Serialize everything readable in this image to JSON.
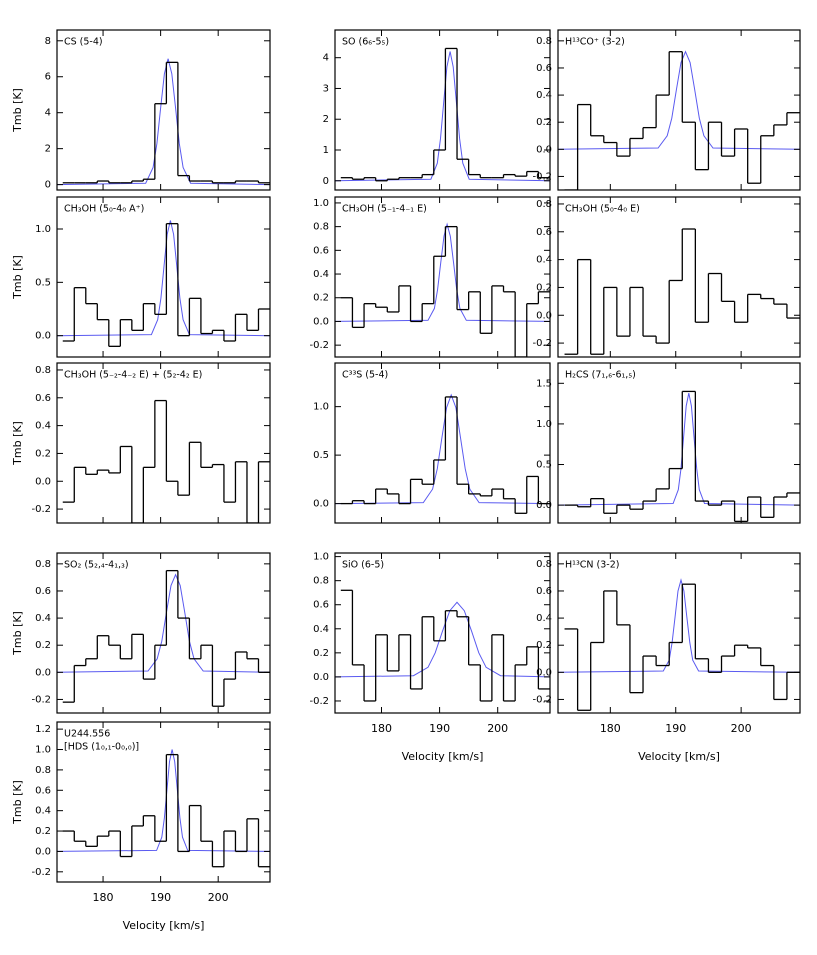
{
  "chart_data": [
    {
      "type": "step",
      "title": "CS (5-4)",
      "ylabel": "Tmb [K]",
      "xlim": [
        172,
        209
      ],
      "xticks": [
        180,
        190,
        200
      ],
      "ylim": [
        -0.3,
        8.6
      ],
      "yticks": [
        0,
        2,
        4,
        6,
        8
      ],
      "x": [
        174,
        176,
        178,
        180,
        182,
        184,
        186,
        188,
        190,
        192,
        194,
        196,
        198,
        200,
        202,
        204,
        206,
        208
      ],
      "values": [
        0.1,
        0.1,
        0.1,
        0.2,
        0.1,
        0.1,
        0.2,
        0.3,
        4.5,
        6.8,
        0.5,
        0.2,
        0.2,
        0.1,
        0.1,
        0.2,
        0.2,
        0.1
      ],
      "color": "#000000",
      "fit_x": [
        172,
        187.4,
        188.7,
        189.35,
        190.0,
        190.65,
        191.3,
        191.95,
        192.6,
        193.25,
        193.9,
        195.2,
        209
      ],
      "fit": [
        0,
        0.08,
        0.95,
        2.28,
        4.25,
        6.17,
        7,
        6.17,
        4.25,
        2.28,
        0.95,
        0.08,
        0
      ],
      "fit_color": "#5a5af0"
    },
    {
      "type": "step",
      "title": "SO (6₆-5₅)",
      "xlim": [
        172,
        209
      ],
      "xticks": [
        180,
        190,
        200
      ],
      "ylim": [
        -0.3,
        4.9
      ],
      "yticks": [
        0,
        1,
        2,
        3,
        4
      ],
      "x": [
        174,
        176,
        178,
        180,
        182,
        184,
        186,
        188,
        190,
        192,
        194,
        196,
        198,
        200,
        202,
        204,
        206,
        208
      ],
      "values": [
        0.1,
        0.05,
        0.1,
        0,
        0.05,
        0.1,
        0.1,
        0.2,
        1.0,
        4.3,
        0.7,
        0.2,
        0.1,
        0.1,
        0.2,
        0.15,
        0.3,
        0.1
      ],
      "color": "#000000",
      "fit_x": [
        172,
        188.5,
        189.6,
        190.15,
        190.7,
        191.25,
        191.8,
        192.35,
        192.9,
        193.45,
        194,
        195.1,
        209
      ],
      "fit": [
        0,
        0.05,
        0.57,
        1.37,
        2.55,
        3.7,
        4.2,
        3.7,
        2.55,
        1.37,
        0.57,
        0.05,
        0
      ],
      "fit_color": "#5a5af0"
    },
    {
      "type": "step",
      "title": "H¹³CO⁺ (3-2)",
      "xlim": [
        172,
        209
      ],
      "xticks": [
        180,
        190,
        200
      ],
      "ylim": [
        -0.3,
        0.88
      ],
      "yticks": [
        -0.2,
        {
          "value": 0,
          "label": "0.0"
        },
        0.2,
        0.4,
        0.6,
        0.8
      ],
      "x": [
        174,
        176,
        178,
        180,
        182,
        184,
        186,
        188,
        190,
        192,
        194,
        196,
        198,
        200,
        202,
        204,
        206,
        208
      ],
      "values": [
        -0.3,
        0.33,
        0.1,
        0.05,
        -0.05,
        0.08,
        0.16,
        0.4,
        0.72,
        0.2,
        -0.15,
        0.2,
        -0.05,
        0.15,
        -0.25,
        0.1,
        0.18,
        0.27
      ],
      "color": "#000000",
      "fit_x": [
        172,
        187.3,
        188.7,
        189.4,
        190.1,
        190.8,
        191.5,
        192.2,
        192.9,
        193.6,
        194.3,
        195.7,
        209
      ],
      "fit": [
        0,
        0.01,
        0.1,
        0.23,
        0.44,
        0.64,
        0.72,
        0.64,
        0.44,
        0.23,
        0.1,
        0.01,
        0
      ],
      "fit_color": "#5a5af0"
    },
    {
      "type": "step",
      "title": "CH₃OH (5₀-4₀ A⁺)",
      "ylabel": "Tmb [K]",
      "xlim": [
        172,
        209
      ],
      "xticks": [
        180,
        190,
        200
      ],
      "ylim": [
        -0.2,
        1.3
      ],
      "yticks": [
        {
          "value": 0,
          "label": "0.0"
        },
        0.5,
        {
          "value": 1,
          "label": "1.0"
        }
      ],
      "x": [
        174,
        176,
        178,
        180,
        182,
        184,
        186,
        188,
        190,
        192,
        194,
        196,
        198,
        200,
        202,
        204,
        206,
        208
      ],
      "values": [
        -0.05,
        0.45,
        0.3,
        0.15,
        -0.1,
        0.15,
        0.05,
        0.3,
        0.2,
        1.05,
        0,
        0.35,
        0.02,
        0.05,
        -0.05,
        0.2,
        0.05,
        0.25
      ],
      "color": "#000000",
      "fit_x": [
        172,
        188.4,
        189.5,
        190.05,
        190.6,
        191.15,
        191.7,
        192.25,
        192.8,
        193.35,
        193.9,
        195,
        209
      ],
      "fit": [
        0,
        0.01,
        0.15,
        0.35,
        0.66,
        0.95,
        1.08,
        0.95,
        0.66,
        0.35,
        0.15,
        0.01,
        0
      ],
      "fit_color": "#5a5af0"
    },
    {
      "type": "step",
      "title": "CH₃OH (5₋₁-4₋₁ E)",
      "xlim": [
        172,
        209
      ],
      "xticks": [
        180,
        190,
        200
      ],
      "ylim": [
        -0.3,
        1.05
      ],
      "yticks": [
        -0.2,
        {
          "value": 0,
          "label": "0.0"
        },
        0.2,
        0.4,
        0.6,
        0.8,
        {
          "value": 1,
          "label": "1.0"
        }
      ],
      "x": [
        174,
        176,
        178,
        180,
        182,
        184,
        186,
        188,
        190,
        192,
        194,
        196,
        198,
        200,
        202,
        204,
        206,
        208
      ],
      "values": [
        0.2,
        -0.05,
        0.15,
        0.12,
        0.08,
        0.3,
        0,
        0.15,
        0.55,
        0.8,
        0.1,
        0.25,
        -0.1,
        0.3,
        0.25,
        -0.3,
        0.15,
        0.25
      ],
      "color": "#000000",
      "fit_x": [
        172,
        188,
        189.1,
        189.65,
        190.2,
        190.75,
        191.3,
        191.85,
        192.4,
        192.95,
        193.5,
        194.6,
        209
      ],
      "fit": [
        0,
        0.01,
        0.11,
        0.27,
        0.5,
        0.72,
        0.82,
        0.72,
        0.5,
        0.27,
        0.11,
        0.01,
        0
      ],
      "fit_color": "#5a5af0"
    },
    {
      "type": "step",
      "title": "CH₃OH (5₀-4₀ E)",
      "xlim": [
        172,
        209
      ],
      "xticks": [
        180,
        190,
        200
      ],
      "ylim": [
        -0.3,
        0.85
      ],
      "yticks": [
        -0.2,
        {
          "value": 0,
          "label": "0.0"
        },
        0.2,
        0.4,
        0.6,
        0.8
      ],
      "x": [
        174,
        176,
        178,
        180,
        182,
        184,
        186,
        188,
        190,
        192,
        194,
        196,
        198,
        200,
        202,
        204,
        206,
        208
      ],
      "values": [
        -0.28,
        0.4,
        -0.28,
        0.2,
        -0.15,
        0.2,
        -0.15,
        -0.2,
        0.25,
        0.62,
        -0.05,
        0.3,
        0.1,
        -0.05,
        0.15,
        0.12,
        0.08,
        -0.02
      ],
      "color": "#000000"
    },
    {
      "type": "step",
      "title": "CH₃OH (5₋₂-4₋₂ E) + (5₂-4₂ E)",
      "ylabel": "Tmb [K]",
      "xlim": [
        172,
        209
      ],
      "xticks": [
        180,
        190,
        200
      ],
      "ylim": [
        -0.3,
        0.85
      ],
      "yticks": [
        -0.2,
        {
          "value": 0,
          "label": "0.0"
        },
        0.2,
        0.4,
        0.6,
        0.8
      ],
      "x": [
        174,
        176,
        178,
        180,
        182,
        184,
        186,
        188,
        190,
        192,
        194,
        196,
        198,
        200,
        202,
        204,
        206,
        208
      ],
      "values": [
        -0.15,
        0.1,
        0.05,
        0.08,
        0.06,
        0.25,
        -0.3,
        0.1,
        0.58,
        0,
        -0.1,
        0.28,
        0.1,
        0.12,
        -0.15,
        0.14,
        -0.3,
        0.14
      ],
      "color": "#000000"
    },
    {
      "type": "step",
      "title": "C³³S (5-4)",
      "xlim": [
        172,
        209
      ],
      "xticks": [
        180,
        190,
        200
      ],
      "ylim": [
        -0.2,
        1.45
      ],
      "yticks": [
        {
          "value": 0,
          "label": "0.0"
        },
        0.5,
        {
          "value": 1,
          "label": "1.0"
        }
      ],
      "x": [
        174,
        176,
        178,
        180,
        182,
        184,
        186,
        188,
        190,
        192,
        194,
        196,
        198,
        200,
        202,
        204,
        206,
        208
      ],
      "values": [
        0,
        0.03,
        0,
        0.15,
        0.1,
        0,
        0.25,
        0.2,
        0.45,
        1.1,
        0.2,
        0.1,
        0.08,
        0.15,
        0.05,
        -0.1,
        0.28,
        0
      ],
      "color": "#000000",
      "fit_x": [
        172,
        187.2,
        188.8,
        189.6,
        190.4,
        191.2,
        192,
        192.8,
        193.6,
        194.4,
        195.2,
        196.8,
        209
      ],
      "fit": [
        0,
        0.01,
        0.15,
        0.36,
        0.68,
        0.99,
        1.12,
        0.99,
        0.68,
        0.36,
        0.15,
        0.01,
        0
      ],
      "fit_color": "#5a5af0"
    },
    {
      "type": "step",
      "title": "H₂CS (7₁,₆-6₁,₅)",
      "xlim": [
        172,
        209
      ],
      "xticks": [
        180,
        190,
        200
      ],
      "ylim": [
        -0.22,
        1.75
      ],
      "yticks": [
        {
          "value": 0,
          "label": "0.0"
        },
        0.5,
        {
          "value": 1,
          "label": "1.0"
        },
        1.5
      ],
      "x": [
        174,
        176,
        178,
        180,
        182,
        184,
        186,
        188,
        190,
        192,
        194,
        196,
        198,
        200,
        202,
        204,
        206,
        208
      ],
      "values": [
        0,
        -0.02,
        0.08,
        -0.1,
        0,
        -0.05,
        0.05,
        0.2,
        0.45,
        1.4,
        0.05,
        0,
        0.05,
        -0.2,
        0.1,
        -0.15,
        0.1,
        0.15
      ],
      "color": "#000000",
      "fit_x": [
        172,
        189.6,
        190.4,
        190.8,
        191.2,
        191.6,
        192,
        192.4,
        192.8,
        193.2,
        193.6,
        194.4,
        209
      ],
      "fit": [
        0,
        0.02,
        0.19,
        0.45,
        0.84,
        1.22,
        1.38,
        1.22,
        0.84,
        0.45,
        0.19,
        0.02,
        0
      ],
      "fit_color": "#5a5af0"
    },
    {
      "type": "step",
      "title": "SO₂ (5₂,₄-4₁,₃)",
      "ylabel": "Tmb [K]",
      "xlim": [
        172,
        209
      ],
      "xticks": [
        180,
        190,
        200
      ],
      "ylim": [
        -0.3,
        0.88
      ],
      "yticks": [
        -0.2,
        {
          "value": 0,
          "label": "0.0"
        },
        0.2,
        0.4,
        0.6,
        0.8
      ],
      "x": [
        174,
        176,
        178,
        180,
        182,
        184,
        186,
        188,
        190,
        192,
        194,
        196,
        198,
        200,
        202,
        204,
        206,
        208
      ],
      "values": [
        -0.22,
        0.05,
        0.1,
        0.27,
        0.2,
        0.1,
        0.28,
        -0.05,
        0.2,
        0.75,
        0.4,
        0.1,
        0.2,
        -0.25,
        -0.05,
        0.15,
        0.1,
        0
      ],
      "color": "#000000",
      "fit_x": [
        172,
        187.8,
        189.4,
        190.2,
        191,
        191.8,
        192.6,
        193.4,
        194.2,
        195,
        195.8,
        197.4,
        209
      ],
      "fit": [
        0,
        0.01,
        0.1,
        0.23,
        0.44,
        0.64,
        0.72,
        0.64,
        0.44,
        0.23,
        0.1,
        0.01,
        0
      ],
      "fit_color": "#5a5af0"
    },
    {
      "type": "step",
      "title": "SiO (6-5)",
      "xlabel": "Velocity [km/s]",
      "xlim": [
        172,
        209
      ],
      "xticks": [
        180,
        190,
        200
      ],
      "ylim": [
        -0.3,
        1.03
      ],
      "yticks": [
        -0.2,
        {
          "value": 0,
          "label": "0.0"
        },
        0.2,
        0.4,
        0.6,
        0.8,
        {
          "value": 1,
          "label": "1.0"
        }
      ],
      "x": [
        174,
        176,
        178,
        180,
        182,
        184,
        186,
        188,
        190,
        192,
        194,
        196,
        198,
        200,
        202,
        204,
        206,
        208
      ],
      "values": [
        0.72,
        0.1,
        -0.2,
        0.35,
        0.05,
        0.35,
        -0.1,
        0.5,
        0.3,
        0.55,
        0.5,
        0.1,
        -0.2,
        0.35,
        -0.2,
        0.1,
        0.25,
        -0.1
      ],
      "color": "#000000",
      "fit_x": [
        172,
        185.5,
        188,
        189.25,
        190.5,
        191.75,
        193,
        194.25,
        195.5,
        196.75,
        198,
        200.5,
        209
      ],
      "fit": [
        0,
        0.01,
        0.08,
        0.2,
        0.38,
        0.55,
        0.62,
        0.55,
        0.38,
        0.2,
        0.08,
        0.01,
        0
      ],
      "fit_color": "#5a5af0"
    },
    {
      "type": "step",
      "title": "H¹³CN (3-2)",
      "xlabel": "Velocity [km/s]",
      "xlim": [
        172,
        209
      ],
      "xticks": [
        180,
        190,
        200
      ],
      "ylim": [
        -0.3,
        0.88
      ],
      "yticks": [
        -0.2,
        {
          "value": 0,
          "label": "0.0"
        },
        0.2,
        0.4,
        0.6,
        0.8
      ],
      "x": [
        174,
        176,
        178,
        180,
        182,
        184,
        186,
        188,
        190,
        192,
        194,
        196,
        198,
        200,
        202,
        204,
        206,
        208
      ],
      "values": [
        0.32,
        -0.28,
        0.22,
        0.6,
        0.35,
        -0.15,
        0.12,
        0.05,
        0.22,
        0.65,
        0.1,
        0,
        0.12,
        0.2,
        0.18,
        0.05,
        -0.2,
        0
      ],
      "color": "#000000",
      "fit_x": [
        172,
        188.1,
        189,
        189.45,
        189.9,
        190.35,
        190.8,
        191.25,
        191.7,
        192.15,
        192.6,
        193.5,
        209
      ],
      "fit": [
        0,
        0.01,
        0.09,
        0.22,
        0.41,
        0.6,
        0.68,
        0.6,
        0.41,
        0.22,
        0.09,
        0.01,
        0
      ],
      "fit_color": "#5a5af0"
    },
    {
      "type": "step",
      "title": "U244.556",
      "subtitle": "[HDS (1₀,₁-0₀,₀)]",
      "ylabel": "Tmb [K]",
      "xlabel": "Velocity [km/s]",
      "xlim": [
        172,
        209
      ],
      "xticks": [
        180,
        190,
        200
      ],
      "ylim": [
        -0.3,
        1.27
      ],
      "yticks": [
        -0.2,
        {
          "value": 0,
          "label": "0.0"
        },
        0.2,
        0.4,
        0.6,
        0.8,
        {
          "value": 1,
          "label": "1.0"
        },
        1.2
      ],
      "x": [
        174,
        176,
        178,
        180,
        182,
        184,
        186,
        188,
        190,
        192,
        194,
        196,
        198,
        200,
        202,
        204,
        206,
        208
      ],
      "values": [
        0.2,
        0.1,
        0.05,
        0.15,
        0.2,
        -0.05,
        0.25,
        0.35,
        0.1,
        0.95,
        0,
        0.45,
        0.1,
        -0.15,
        0.2,
        0,
        0.32,
        -0.15
      ],
      "color": "#000000",
      "fit_x": [
        172,
        189.3,
        190.2,
        190.65,
        191.1,
        191.55,
        192,
        192.45,
        192.9,
        193.35,
        193.8,
        194.7,
        209
      ],
      "fit": [
        0,
        0.01,
        0.14,
        0.33,
        0.61,
        0.88,
        1,
        0.88,
        0.61,
        0.33,
        0.14,
        0.01,
        0
      ],
      "fit_color": "#5a5af0"
    }
  ]
}
